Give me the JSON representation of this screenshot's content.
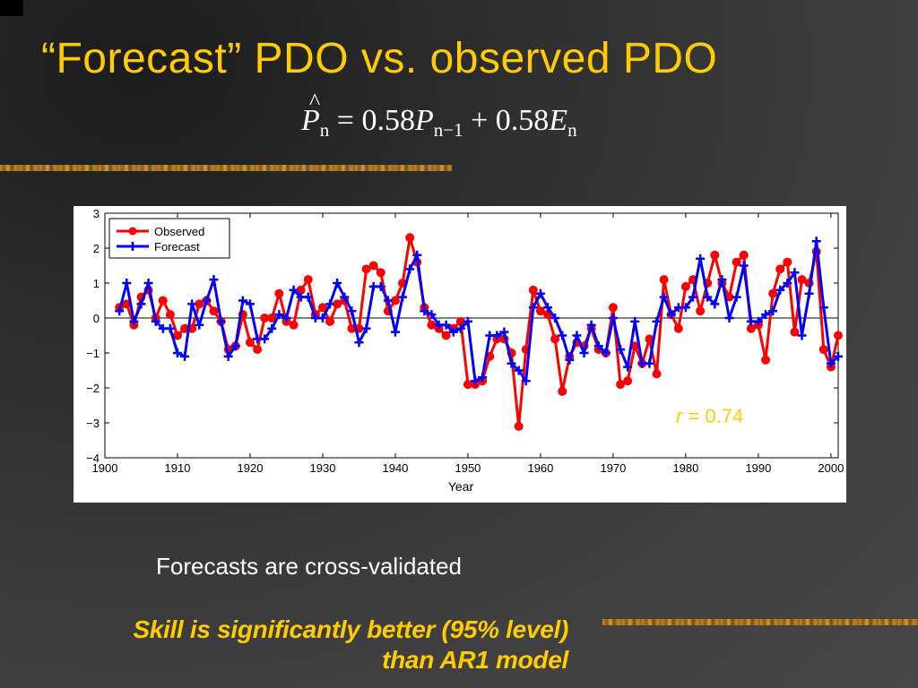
{
  "slide": {
    "title": "“Forecast” PDO vs. observed PDO",
    "equation": {
      "lhs": "P",
      "lhs_sub": "n",
      "equals": "=",
      "coef1": "0.58",
      "var1": "P",
      "var1_sub": "n−1",
      "plus": "+",
      "coef2": "0.58",
      "var2": "E",
      "var2_sub": "n"
    },
    "caption": "Forecasts are cross-validated",
    "note_line1": "Skill is significantly better (95% level)",
    "note_line2": "than AR1 model"
  },
  "colors": {
    "title": "#ffcc00",
    "observed": "#ff0000",
    "forecast": "#0000ff",
    "annotation": "#ffcc00"
  },
  "chart_data": {
    "type": "line",
    "xlabel": "Year",
    "ylabel": "",
    "xlim": [
      1900,
      2001
    ],
    "ylim": [
      -4,
      3
    ],
    "x_ticks": [
      1900,
      1910,
      1920,
      1930,
      1940,
      1950,
      1960,
      1970,
      1980,
      1990,
      2000
    ],
    "y_ticks": [
      3,
      2,
      1,
      0,
      -1,
      -2,
      -3,
      -4
    ],
    "y_tick_labels": [
      "3",
      "2",
      "1",
      "0",
      "−1",
      "−2",
      "−3",
      "−4"
    ],
    "grid": false,
    "zero_line": true,
    "legend_position": "top-left",
    "annotation_var": "r",
    "annotation_text": "= 0.74",
    "x": [
      1902,
      1903,
      1904,
      1905,
      1906,
      1907,
      1908,
      1909,
      1910,
      1911,
      1912,
      1913,
      1914,
      1915,
      1916,
      1917,
      1918,
      1919,
      1920,
      1921,
      1922,
      1923,
      1924,
      1925,
      1926,
      1927,
      1928,
      1929,
      1930,
      1931,
      1932,
      1933,
      1934,
      1935,
      1936,
      1937,
      1938,
      1939,
      1940,
      1941,
      1942,
      1943,
      1944,
      1945,
      1946,
      1947,
      1948,
      1949,
      1950,
      1951,
      1952,
      1953,
      1954,
      1955,
      1956,
      1957,
      1958,
      1959,
      1960,
      1961,
      1962,
      1963,
      1964,
      1965,
      1966,
      1967,
      1968,
      1969,
      1970,
      1971,
      1972,
      1973,
      1974,
      1975,
      1976,
      1977,
      1978,
      1979,
      1980,
      1981,
      1982,
      1983,
      1984,
      1985,
      1986,
      1987,
      1988,
      1989,
      1990,
      1991,
      1992,
      1993,
      1994,
      1995,
      1996,
      1997,
      1998,
      1999,
      2000,
      2001
    ],
    "series": [
      {
        "name": "Observed",
        "marker": "circle",
        "values": [
          0.3,
          0.4,
          -0.2,
          0.6,
          0.8,
          0.0,
          0.5,
          0.1,
          -0.5,
          -0.3,
          -0.3,
          0.4,
          0.5,
          0.2,
          -0.1,
          -0.9,
          -0.8,
          0.1,
          -0.7,
          -0.9,
          0.0,
          0.0,
          0.7,
          -0.1,
          -0.2,
          0.8,
          1.1,
          0.1,
          0.3,
          -0.1,
          0.4,
          0.5,
          -0.3,
          -0.3,
          1.4,
          1.5,
          1.3,
          0.2,
          0.5,
          1.0,
          2.3,
          1.6,
          0.3,
          -0.2,
          -0.3,
          -0.5,
          -0.3,
          -0.1,
          -1.9,
          -1.9,
          -1.8,
          -1.1,
          -0.6,
          -0.6,
          -1.0,
          -3.1,
          -0.9,
          0.8,
          0.2,
          0.1,
          -0.6,
          -2.1,
          -1.1,
          -0.7,
          -0.8,
          -0.3,
          -0.9,
          -1.0,
          0.3,
          -1.9,
          -1.8,
          -0.8,
          -1.3,
          -0.6,
          -1.6,
          1.1,
          0.1,
          -0.3,
          0.9,
          1.1,
          0.2,
          1.0,
          1.8,
          1.0,
          0.6,
          1.6,
          1.8,
          -0.3,
          -0.2,
          -1.2,
          0.7,
          1.4,
          1.6,
          -0.4,
          1.1,
          1.0,
          1.9,
          -0.9,
          -1.4,
          -0.5
        ]
      },
      {
        "name": "Forecast",
        "marker": "plus",
        "values": [
          0.2,
          1.0,
          -0.1,
          0.4,
          1.0,
          -0.1,
          -0.3,
          -0.3,
          -1.0,
          -1.1,
          0.4,
          -0.2,
          0.5,
          1.1,
          -0.1,
          -1.1,
          -0.8,
          0.5,
          0.4,
          -0.6,
          -0.6,
          -0.3,
          0.1,
          0.0,
          0.8,
          0.6,
          0.6,
          0.0,
          0.0,
          0.4,
          1.0,
          0.6,
          0.2,
          -0.7,
          -0.3,
          0.9,
          0.9,
          0.5,
          -0.4,
          0.6,
          1.4,
          1.8,
          0.2,
          0.1,
          -0.2,
          -0.2,
          -0.4,
          -0.3,
          -0.1,
          -1.8,
          -1.7,
          -0.5,
          -0.5,
          -0.4,
          -1.3,
          -1.5,
          -1.8,
          0.3,
          0.7,
          0.3,
          0.0,
          -0.5,
          -1.2,
          -0.5,
          -1.0,
          -0.2,
          -0.8,
          -1.0,
          0.0,
          -0.9,
          -1.4,
          -0.1,
          -1.3,
          -1.3,
          -0.1,
          0.6,
          0.1,
          0.3,
          0.3,
          0.6,
          1.7,
          0.6,
          0.4,
          1.1,
          0.0,
          0.6,
          1.5,
          -0.1,
          -0.1,
          0.1,
          0.2,
          0.8,
          1.0,
          1.3,
          -0.5,
          0.7,
          2.2,
          0.3,
          -1.3,
          -1.1
        ]
      }
    ]
  }
}
